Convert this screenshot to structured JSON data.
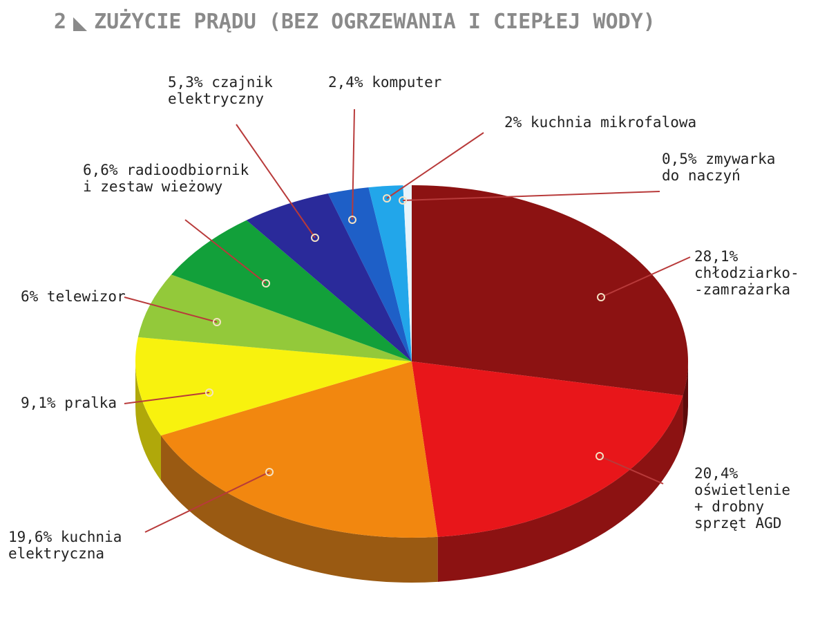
{
  "figure": {
    "number": "2",
    "title": "ZUŻYCIE PRĄDU (BEZ OGRZEWANIA I CIEPŁEJ WODY)"
  },
  "chart_data": {
    "type": "pie",
    "title": "ZUŻYCIE PRĄDU (BEZ OGRZEWANIA I CIEPŁEJ WODY)",
    "unit": "%",
    "slices": [
      {
        "value": 28.1,
        "color": "#8c1212",
        "side_color": "#5e0b0b",
        "label": [
          "28,1%",
          "chłodziarko-",
          "-zamrażarka"
        ]
      },
      {
        "value": 20.4,
        "color": "#e8161a",
        "side_color": "#8c1212",
        "label": [
          "20,4%",
          "oświetlenie",
          "+ drobny",
          "sprzęt AGD"
        ]
      },
      {
        "value": 19.6,
        "color": "#f2870f",
        "side_color": "#9a5a12",
        "label": [
          "19,6% kuchnia",
          "elektryczna"
        ]
      },
      {
        "value": 9.1,
        "color": "#f8f20e",
        "side_color": "#b0a80a",
        "label": [
          "9,1% pralka"
        ]
      },
      {
        "value": 6.0,
        "color": "#93c93a",
        "side_color": "#5f8a20",
        "label": [
          "6% telewizor"
        ]
      },
      {
        "value": 6.6,
        "color": "#12a03a",
        "side_color": "#0b6a26",
        "label": [
          "6,6% radioodbiornik",
          "i zestaw wieżowy"
        ]
      },
      {
        "value": 5.3,
        "color": "#2a2a9a",
        "side_color": "#1a1a66",
        "label": [
          "5,3% czajnik",
          "elektryczny"
        ]
      },
      {
        "value": 2.4,
        "color": "#1e5fc7",
        "side_color": "#123e85",
        "label": [
          "2,4% komputer"
        ]
      },
      {
        "value": 2.0,
        "color": "#22a6ea",
        "side_color": "#1570a0",
        "label": [
          "2% kuchnia mikrofalowa"
        ]
      },
      {
        "value": 0.5,
        "color": "#e8f4fb",
        "side_color": "#b8c8d2",
        "label": [
          "0,5% zmywarka",
          "do naczyń"
        ]
      }
    ],
    "leader_color": "#b83a3a"
  }
}
